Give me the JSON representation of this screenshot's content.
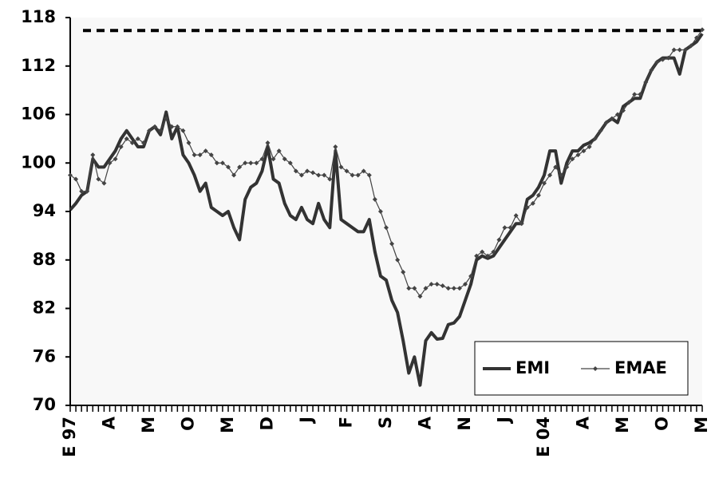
{
  "chart_data": {
    "type": "line",
    "categories": [
      "E 97",
      null,
      null,
      null,
      null,
      null,
      null,
      "A",
      null,
      null,
      null,
      null,
      null,
      null,
      "M",
      null,
      null,
      null,
      null,
      null,
      null,
      "O",
      null,
      null,
      null,
      null,
      null,
      null,
      "M",
      null,
      null,
      null,
      null,
      null,
      null,
      "D",
      null,
      null,
      null,
      null,
      null,
      null,
      "J",
      null,
      null,
      null,
      null,
      null,
      null,
      "F",
      null,
      null,
      null,
      null,
      null,
      null,
      "S",
      null,
      null,
      null,
      null,
      null,
      null,
      "A",
      null,
      null,
      null,
      null,
      null,
      null,
      "N",
      null,
      null,
      null,
      null,
      null,
      null,
      "J",
      null,
      null,
      null,
      null,
      null,
      null,
      "E 04",
      null,
      null,
      null,
      null,
      null,
      null,
      "A",
      null,
      null,
      null,
      null,
      null,
      null,
      "M",
      null,
      null,
      null,
      null,
      null,
      null,
      "O",
      null,
      null,
      null,
      null,
      null,
      null,
      "M"
    ],
    "series": [
      {
        "name": "EMI",
        "color": "#333333",
        "values": [
          94.2,
          95,
          96,
          96.5,
          100.5,
          99.5,
          99.5,
          100.5,
          101.5,
          103,
          104,
          103,
          102,
          102,
          104,
          104.5,
          103.5,
          106.3,
          103,
          104.5,
          101,
          100,
          98.5,
          96.5,
          97.5,
          94.5,
          94,
          93.5,
          94,
          92,
          90.5,
          95.5,
          97,
          97.5,
          99,
          102,
          98,
          97.5,
          95,
          93.5,
          93,
          94.5,
          93,
          92.5,
          95,
          93,
          92,
          101.5,
          93,
          92.5,
          92,
          91.5,
          91.5,
          93,
          89,
          86,
          85.5,
          83,
          81.5,
          78,
          74,
          76,
          72.5,
          78,
          79,
          78.2,
          78.3,
          80,
          80.2,
          81,
          83,
          85,
          88,
          88.5,
          88.2,
          88.5,
          89.5,
          90.5,
          91.5,
          92.5,
          92.5,
          95.5,
          96,
          97,
          98.5,
          101.5,
          101.5,
          97.5,
          100,
          101.5,
          101.5,
          102.2,
          102.5,
          103,
          104,
          105,
          105.5,
          105,
          107,
          107.5,
          108,
          108,
          110,
          111.5,
          112.5,
          113,
          113,
          113,
          111,
          114,
          114.5,
          115,
          116
        ]
      },
      {
        "name": "EMAE",
        "color": "#444444",
        "values": [
          98.5,
          98,
          96.5,
          96.5,
          101,
          98,
          97.5,
          100,
          100.5,
          102,
          103,
          102.5,
          103,
          102.5,
          104,
          104.5,
          104,
          105.5,
          104.5,
          104.5,
          104,
          102.5,
          101,
          101,
          101.5,
          101,
          100,
          100,
          99.5,
          98.5,
          99.5,
          100,
          100,
          100,
          100.5,
          102.5,
          100.5,
          101.5,
          100.5,
          100,
          99,
          98.5,
          99,
          98.8,
          98.5,
          98.5,
          98,
          102,
          99.5,
          99,
          98.5,
          98.5,
          99,
          98.5,
          95.5,
          94,
          92,
          90,
          88,
          86.5,
          84.5,
          84.5,
          83.5,
          84.5,
          85,
          85,
          84.8,
          84.5,
          84.5,
          84.5,
          85,
          86,
          88.5,
          89,
          88.5,
          89,
          90.5,
          92,
          92,
          93.5,
          92.5,
          94.5,
          95,
          96,
          97.5,
          98.5,
          99.5,
          98.5,
          99.5,
          100.5,
          101,
          101.5,
          102,
          103,
          104,
          105,
          105.5,
          106,
          106.5,
          107.5,
          108.5,
          108.5,
          110,
          111.5,
          112.5,
          112.8,
          113,
          114,
          114,
          114,
          114.5,
          115.5,
          116.5
        ]
      }
    ],
    "reference_line": 116.4,
    "ylim": [
      70,
      118
    ],
    "yticks": [
      70,
      76,
      82,
      88,
      94,
      100,
      106,
      112,
      118
    ],
    "legend": "lower right"
  }
}
